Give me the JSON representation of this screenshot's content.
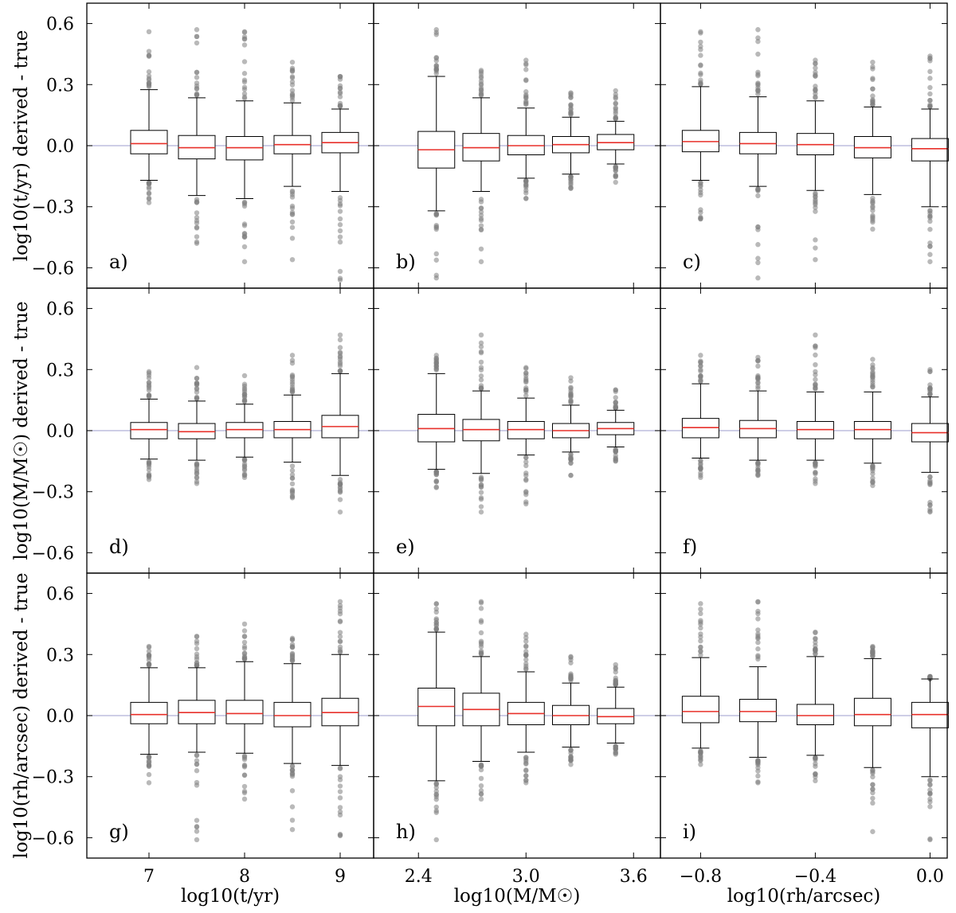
{
  "figure": {
    "row_ylabels": [
      "log10(t/yr) derived - true",
      "log10(M/M☉) derived - true",
      "log10(rh/arcsec) derived - true"
    ],
    "col_xlabels": [
      "log10(t/yr)",
      "log10(M/M☉)",
      "log10(rh/arcsec)"
    ],
    "y_ticks": [
      "0.6",
      "0.3",
      "0.0",
      "−0.3",
      "−0.6"
    ],
    "x_ticks": [
      [
        "7",
        "8",
        "9"
      ],
      [
        "2.4",
        "3.0",
        "3.6"
      ],
      [
        "−0.8",
        "−0.4",
        "0.0"
      ]
    ],
    "colors": {
      "median": "#e8302a",
      "zero_line": "#b0b0d8",
      "outlier": "#808080",
      "frame": "#000000"
    }
  },
  "chart_data": [
    {
      "panel": "a)",
      "type": "box",
      "row": 0,
      "col": 0,
      "ylim": [
        -0.7,
        0.7
      ],
      "xlim": [
        6.35,
        9.35
      ],
      "x": [
        7.0,
        7.5,
        8.0,
        8.5,
        9.0
      ],
      "boxes": [
        {
          "q1": -0.04,
          "median": 0.01,
          "q3": 0.075,
          "wlo": -0.17,
          "whi": 0.275,
          "fmin": -0.28,
          "fmax": 0.56
        },
        {
          "q1": -0.065,
          "median": -0.01,
          "q3": 0.05,
          "wlo": -0.245,
          "whi": 0.235,
          "fmin": -0.48,
          "fmax": 0.57
        },
        {
          "q1": -0.07,
          "median": -0.01,
          "q3": 0.045,
          "wlo": -0.26,
          "whi": 0.22,
          "fmin": -0.57,
          "fmax": 0.56
        },
        {
          "q1": -0.04,
          "median": 0.005,
          "q3": 0.05,
          "wlo": -0.2,
          "whi": 0.21,
          "fmin": -0.56,
          "fmax": 0.41
        },
        {
          "q1": -0.035,
          "median": 0.015,
          "q3": 0.065,
          "wlo": -0.225,
          "whi": 0.18,
          "fmin": -0.66,
          "fmax": 0.34
        }
      ]
    },
    {
      "panel": "b)",
      "type": "box",
      "row": 0,
      "col": 1,
      "ylim": [
        -0.7,
        0.7
      ],
      "xlim": [
        2.15,
        3.75
      ],
      "x": [
        2.5,
        2.75,
        3.0,
        3.25,
        3.5
      ],
      "boxes": [
        {
          "q1": -0.11,
          "median": -0.02,
          "q3": 0.07,
          "wlo": -0.32,
          "whi": 0.34,
          "fmin": -0.65,
          "fmax": 0.57
        },
        {
          "q1": -0.075,
          "median": -0.01,
          "q3": 0.06,
          "wlo": -0.225,
          "whi": 0.235,
          "fmin": -0.57,
          "fmax": 0.37
        },
        {
          "q1": -0.045,
          "median": 0.0,
          "q3": 0.05,
          "wlo": -0.16,
          "whi": 0.185,
          "fmin": -0.26,
          "fmax": 0.42
        },
        {
          "q1": -0.035,
          "median": 0.005,
          "q3": 0.045,
          "wlo": -0.14,
          "whi": 0.14,
          "fmin": -0.21,
          "fmax": 0.26
        },
        {
          "q1": -0.02,
          "median": 0.015,
          "q3": 0.055,
          "wlo": -0.09,
          "whi": 0.12,
          "fmin": -0.18,
          "fmax": 0.27
        }
      ]
    },
    {
      "panel": "c)",
      "type": "box",
      "row": 0,
      "col": 2,
      "ylim": [
        -0.7,
        0.7
      ],
      "xlim": [
        -0.94,
        0.06
      ],
      "x": [
        -0.8,
        -0.6,
        -0.4,
        -0.2,
        0.0
      ],
      "boxes": [
        {
          "q1": -0.03,
          "median": 0.02,
          "q3": 0.075,
          "wlo": -0.17,
          "whi": 0.29,
          "fmin": -0.36,
          "fmax": 0.56
        },
        {
          "q1": -0.04,
          "median": 0.01,
          "q3": 0.065,
          "wlo": -0.2,
          "whi": 0.24,
          "fmin": -0.65,
          "fmax": 0.57
        },
        {
          "q1": -0.045,
          "median": 0.005,
          "q3": 0.06,
          "wlo": -0.22,
          "whi": 0.22,
          "fmin": -0.56,
          "fmax": 0.42
        },
        {
          "q1": -0.06,
          "median": -0.01,
          "q3": 0.045,
          "wlo": -0.24,
          "whi": 0.19,
          "fmin": -0.41,
          "fmax": 0.41
        },
        {
          "q1": -0.075,
          "median": -0.015,
          "q3": 0.035,
          "wlo": -0.3,
          "whi": 0.18,
          "fmin": -0.57,
          "fmax": 0.44
        }
      ]
    },
    {
      "panel": "d)",
      "type": "box",
      "row": 1,
      "col": 0,
      "ylim": [
        -0.7,
        0.7
      ],
      "xlim": [
        6.35,
        9.35
      ],
      "x": [
        7.0,
        7.5,
        8.0,
        8.5,
        9.0
      ],
      "boxes": [
        {
          "q1": -0.04,
          "median": 0.005,
          "q3": 0.04,
          "wlo": -0.14,
          "whi": 0.155,
          "fmin": -0.24,
          "fmax": 0.29
        },
        {
          "q1": -0.04,
          "median": -0.005,
          "q3": 0.035,
          "wlo": -0.145,
          "whi": 0.145,
          "fmin": -0.26,
          "fmax": 0.31
        },
        {
          "q1": -0.035,
          "median": 0.005,
          "q3": 0.04,
          "wlo": -0.13,
          "whi": 0.13,
          "fmin": -0.23,
          "fmax": 0.27
        },
        {
          "q1": -0.035,
          "median": 0.005,
          "q3": 0.045,
          "wlo": -0.155,
          "whi": 0.175,
          "fmin": -0.33,
          "fmax": 0.37
        },
        {
          "q1": -0.035,
          "median": 0.02,
          "q3": 0.075,
          "wlo": -0.22,
          "whi": 0.28,
          "fmin": -0.4,
          "fmax": 0.47
        }
      ]
    },
    {
      "panel": "e)",
      "type": "box",
      "row": 1,
      "col": 1,
      "ylim": [
        -0.7,
        0.7
      ],
      "xlim": [
        2.15,
        3.75
      ],
      "x": [
        2.5,
        2.75,
        3.0,
        3.25,
        3.5
      ],
      "boxes": [
        {
          "q1": -0.055,
          "median": 0.01,
          "q3": 0.08,
          "wlo": -0.19,
          "whi": 0.28,
          "fmin": -0.28,
          "fmax": 0.37
        },
        {
          "q1": -0.05,
          "median": 0.005,
          "q3": 0.055,
          "wlo": -0.21,
          "whi": 0.195,
          "fmin": -0.4,
          "fmax": 0.47
        },
        {
          "q1": -0.04,
          "median": 0.005,
          "q3": 0.045,
          "wlo": -0.12,
          "whi": 0.16,
          "fmin": -0.36,
          "fmax": 0.31
        },
        {
          "q1": -0.035,
          "median": 0.0,
          "q3": 0.035,
          "wlo": -0.105,
          "whi": 0.125,
          "fmin": -0.22,
          "fmax": 0.26
        },
        {
          "q1": -0.02,
          "median": 0.01,
          "q3": 0.04,
          "wlo": -0.08,
          "whi": 0.1,
          "fmin": -0.15,
          "fmax": 0.2
        }
      ]
    },
    {
      "panel": "f)",
      "type": "box",
      "row": 1,
      "col": 2,
      "ylim": [
        -0.7,
        0.7
      ],
      "xlim": [
        -0.94,
        0.06
      ],
      "x": [
        -0.8,
        -0.6,
        -0.4,
        -0.2,
        0.0
      ],
      "boxes": [
        {
          "q1": -0.035,
          "median": 0.015,
          "q3": 0.06,
          "wlo": -0.135,
          "whi": 0.23,
          "fmin": -0.23,
          "fmax": 0.37
        },
        {
          "q1": -0.035,
          "median": 0.01,
          "q3": 0.05,
          "wlo": -0.145,
          "whi": 0.195,
          "fmin": -0.22,
          "fmax": 0.36
        },
        {
          "q1": -0.04,
          "median": 0.005,
          "q3": 0.045,
          "wlo": -0.145,
          "whi": 0.19,
          "fmin": -0.26,
          "fmax": 0.47
        },
        {
          "q1": -0.04,
          "median": 0.005,
          "q3": 0.045,
          "wlo": -0.16,
          "whi": 0.19,
          "fmin": -0.27,
          "fmax": 0.35
        },
        {
          "q1": -0.055,
          "median": -0.01,
          "q3": 0.035,
          "wlo": -0.205,
          "whi": 0.165,
          "fmin": -0.4,
          "fmax": 0.3
        }
      ]
    },
    {
      "panel": "g)",
      "type": "box",
      "row": 2,
      "col": 0,
      "ylim": [
        -0.7,
        0.7
      ],
      "xlim": [
        6.35,
        9.35
      ],
      "x": [
        7.0,
        7.5,
        8.0,
        8.5,
        9.0
      ],
      "boxes": [
        {
          "q1": -0.04,
          "median": 0.005,
          "q3": 0.065,
          "wlo": -0.19,
          "whi": 0.235,
          "fmin": -0.33,
          "fmax": 0.34
        },
        {
          "q1": -0.04,
          "median": 0.015,
          "q3": 0.075,
          "wlo": -0.18,
          "whi": 0.235,
          "fmin": -0.61,
          "fmax": 0.39
        },
        {
          "q1": -0.04,
          "median": 0.01,
          "q3": 0.075,
          "wlo": -0.185,
          "whi": 0.265,
          "fmin": -0.41,
          "fmax": 0.45
        },
        {
          "q1": -0.055,
          "median": 0.0,
          "q3": 0.065,
          "wlo": -0.235,
          "whi": 0.255,
          "fmin": -0.56,
          "fmax": 0.38
        },
        {
          "q1": -0.05,
          "median": 0.015,
          "q3": 0.085,
          "wlo": -0.245,
          "whi": 0.3,
          "fmin": -0.59,
          "fmax": 0.56
        }
      ]
    },
    {
      "panel": "h)",
      "type": "box",
      "row": 2,
      "col": 1,
      "ylim": [
        -0.7,
        0.7
      ],
      "xlim": [
        2.15,
        3.75
      ],
      "x": [
        2.5,
        2.75,
        3.0,
        3.25,
        3.5
      ],
      "boxes": [
        {
          "q1": -0.05,
          "median": 0.045,
          "q3": 0.135,
          "wlo": -0.32,
          "whi": 0.41,
          "fmin": -0.61,
          "fmax": 0.55
        },
        {
          "q1": -0.05,
          "median": 0.03,
          "q3": 0.11,
          "wlo": -0.225,
          "whi": 0.29,
          "fmin": -0.41,
          "fmax": 0.56
        },
        {
          "q1": -0.045,
          "median": 0.01,
          "q3": 0.065,
          "wlo": -0.18,
          "whi": 0.215,
          "fmin": -0.33,
          "fmax": 0.4
        },
        {
          "q1": -0.045,
          "median": 0.0,
          "q3": 0.05,
          "wlo": -0.155,
          "whi": 0.16,
          "fmin": -0.24,
          "fmax": 0.29
        },
        {
          "q1": -0.04,
          "median": -0.005,
          "q3": 0.035,
          "wlo": -0.135,
          "whi": 0.14,
          "fmin": -0.19,
          "fmax": 0.25
        }
      ]
    },
    {
      "panel": "i)",
      "type": "box",
      "row": 2,
      "col": 2,
      "ylim": [
        -0.7,
        0.7
      ],
      "xlim": [
        -0.94,
        0.06
      ],
      "x": [
        -0.8,
        -0.6,
        -0.4,
        -0.2,
        0.0
      ],
      "boxes": [
        {
          "q1": -0.035,
          "median": 0.02,
          "q3": 0.095,
          "wlo": -0.16,
          "whi": 0.285,
          "fmin": -0.24,
          "fmax": 0.55
        },
        {
          "q1": -0.03,
          "median": 0.02,
          "q3": 0.08,
          "wlo": -0.205,
          "whi": 0.24,
          "fmin": -0.33,
          "fmax": 0.56
        },
        {
          "q1": -0.045,
          "median": 0.0,
          "q3": 0.055,
          "wlo": -0.195,
          "whi": 0.29,
          "fmin": -0.32,
          "fmax": 0.41
        },
        {
          "q1": -0.05,
          "median": 0.005,
          "q3": 0.085,
          "wlo": -0.255,
          "whi": 0.28,
          "fmin": -0.57,
          "fmax": 0.34
        },
        {
          "q1": -0.06,
          "median": 0.005,
          "q3": 0.065,
          "wlo": -0.3,
          "whi": 0.18,
          "fmin": -0.61,
          "fmax": 0.18
        }
      ]
    }
  ]
}
